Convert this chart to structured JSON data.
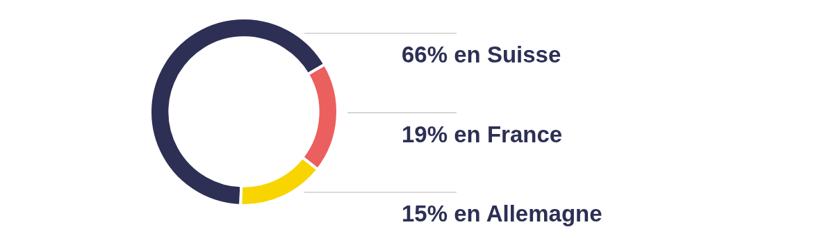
{
  "chart_data": {
    "type": "donut",
    "categories": [
      "66% en Suisse",
      "19% en France",
      "15% en Allemagne"
    ],
    "values": [
      66,
      19,
      15
    ],
    "colors": [
      "#2d2f55",
      "#ec5f5f",
      "#f8d500"
    ],
    "legend": false
  }
}
